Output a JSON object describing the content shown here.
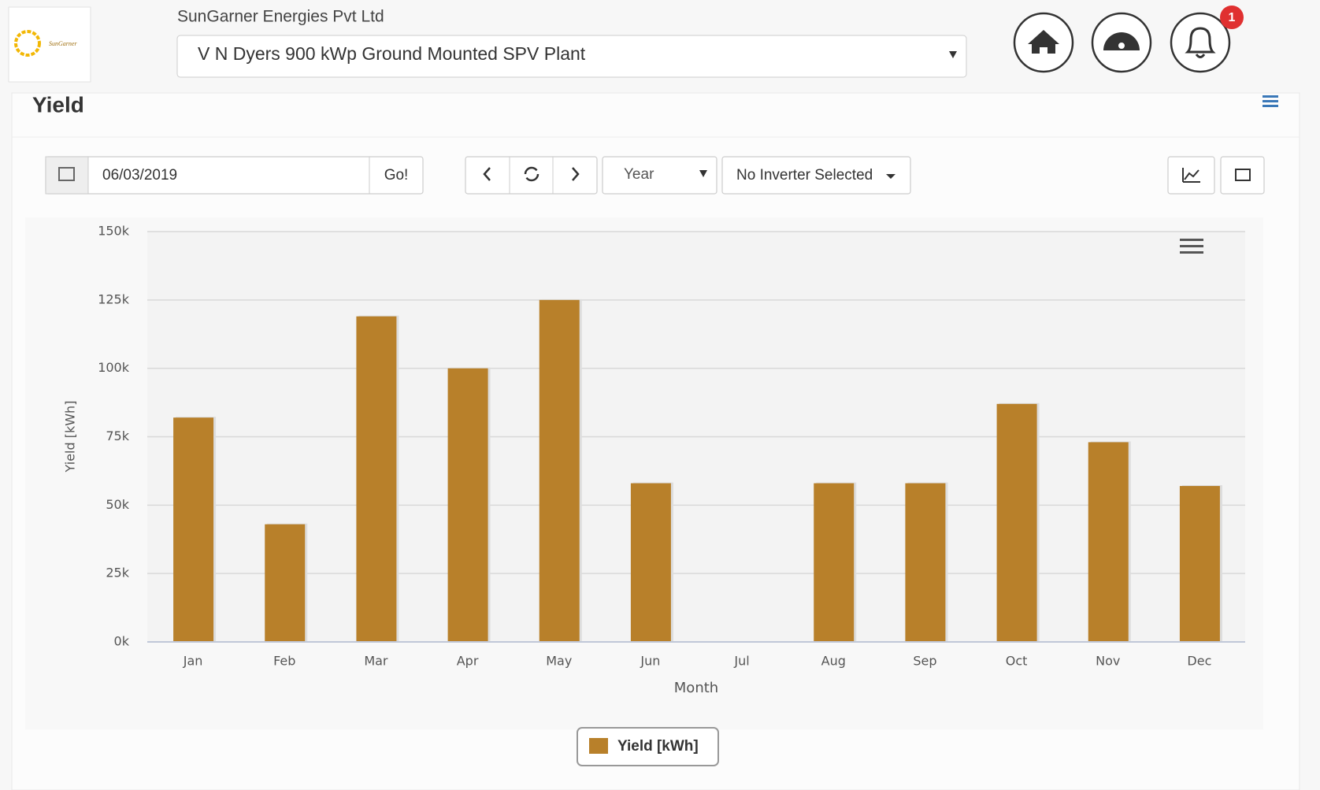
{
  "header": {
    "logo_text": "SunGarner",
    "company": "SunGarner Energies Pvt Ltd",
    "plant": "V N Dyers 900 kWp Ground Mounted SPV Plant",
    "notifications": 1
  },
  "panel": {
    "title": "Yield",
    "date": "06/03/2019",
    "go": "Go!",
    "period": "Year",
    "inverter": "No Inverter Selected"
  },
  "chart_data": {
    "type": "bar",
    "categories": [
      "Jan",
      "Feb",
      "Mar",
      "Apr",
      "May",
      "Jun",
      "Jul",
      "Aug",
      "Sep",
      "Oct",
      "Nov",
      "Dec"
    ],
    "series": [
      {
        "name": "Yield [kWh]",
        "color": "#b8802a",
        "values": [
          82000,
          43000,
          119000,
          100000,
          125000,
          58000,
          0,
          58000,
          58000,
          87000,
          73000,
          57000
        ]
      }
    ],
    "xlabel": "Month",
    "ylabel": "Yield [kWh]",
    "ylim": [
      0,
      150000
    ],
    "yticks": [
      {
        "value": 0,
        "label": "0k"
      },
      {
        "value": 25000,
        "label": "25k"
      },
      {
        "value": 50000,
        "label": "50k"
      },
      {
        "value": 75000,
        "label": "75k"
      },
      {
        "value": 100000,
        "label": "100k"
      },
      {
        "value": 125000,
        "label": "125k"
      },
      {
        "value": 150000,
        "label": "150k"
      }
    ],
    "grid": true,
    "legend": "bottom"
  }
}
